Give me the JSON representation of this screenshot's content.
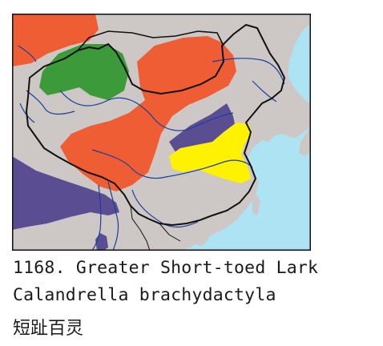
{
  "caption": {
    "number_and_name": "1168. Greater Short-toed Lark",
    "scientific_name": "Calandrella brachydactyla",
    "chinese_name": "短趾百灵"
  },
  "map": {
    "colors": {
      "land": "#cdc8c6",
      "sea": "#aee3f3",
      "orange_range": "#ef5d35",
      "green_range": "#3c9a3a",
      "purple_range": "#5a4d92",
      "yellow_range": "#fff200",
      "border": "#111111",
      "river": "#1a3f9a",
      "frame": "#111111"
    }
  }
}
